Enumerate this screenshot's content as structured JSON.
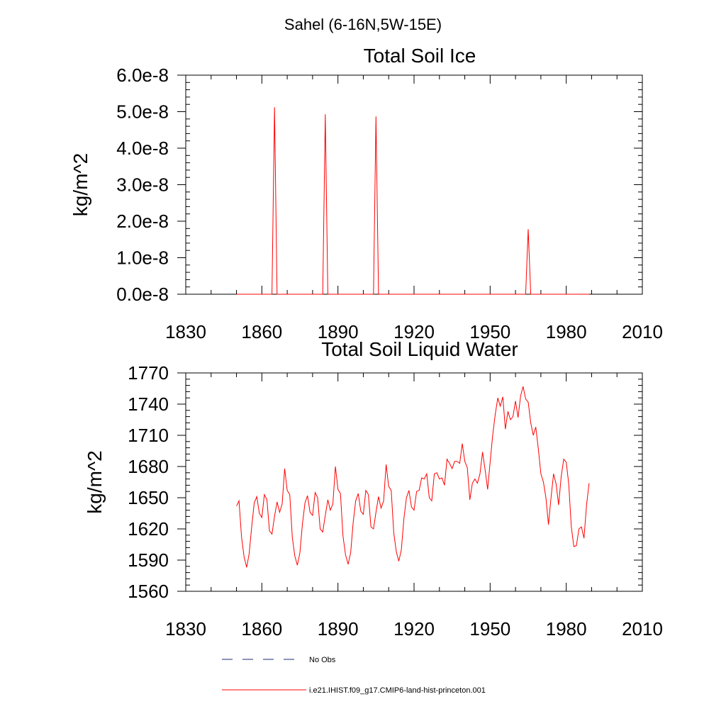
{
  "figure": {
    "supertitle": "Sahel (6-16N,5W-15E)"
  },
  "chart_data": [
    {
      "type": "line",
      "title": "Total Soil Ice",
      "xlabel": "",
      "ylabel": "kg/m^2",
      "xlim": [
        1830,
        2010
      ],
      "ylim": [
        0,
        6e-08
      ],
      "xticks": [
        1830,
        1860,
        1890,
        1920,
        1950,
        1980,
        2010
      ],
      "xtick_labels": [
        "1830",
        "1860",
        "1890",
        "1920",
        "1950",
        "1980",
        "2010"
      ],
      "yticks": [
        0,
        1e-08,
        2e-08,
        3e-08,
        4e-08,
        5e-08,
        6e-08
      ],
      "ytick_labels": [
        "0.0e-8",
        "1.0e-8",
        "2.0e-8",
        "3.0e-8",
        "4.0e-8",
        "5.0e-8",
        "6.0e-8"
      ],
      "grid": false,
      "series": [
        {
          "name": "i.e21.IHIST.f09_g17.CMIP6-land-hist-princeton.001",
          "color": "#ff0000",
          "x": [
            1850,
            1864,
            1865,
            1866,
            1884,
            1885,
            1886,
            1904,
            1905,
            1906,
            1964,
            1965,
            1966,
            1989
          ],
          "y": [
            0,
            0,
            5.12e-08,
            0,
            0,
            4.93e-08,
            0,
            0,
            4.87e-08,
            0,
            0,
            1.78e-08,
            0,
            0
          ]
        }
      ]
    },
    {
      "type": "line",
      "title": "Total Soil Liquid Water",
      "xlabel": "",
      "ylabel": "kg/m^2",
      "xlim": [
        1830,
        2010
      ],
      "ylim": [
        1560,
        1770
      ],
      "xticks": [
        1830,
        1860,
        1890,
        1920,
        1950,
        1980,
        2010
      ],
      "xtick_labels": [
        "1830",
        "1860",
        "1890",
        "1920",
        "1950",
        "1980",
        "2010"
      ],
      "yticks": [
        1560,
        1590,
        1620,
        1650,
        1680,
        1710,
        1740,
        1770
      ],
      "ytick_labels": [
        "1560",
        "1590",
        "1620",
        "1650",
        "1680",
        "1710",
        "1740",
        "1770"
      ],
      "grid": false,
      "series": [
        {
          "name": "i.e21.IHIST.f09_g17.CMIP6-land-hist-princeton.001",
          "color": "#ff0000",
          "x": [
            1850,
            1851,
            1852,
            1853,
            1854,
            1855,
            1856,
            1857,
            1858,
            1859,
            1860,
            1861,
            1862,
            1863,
            1864,
            1865,
            1866,
            1867,
            1868,
            1869,
            1870,
            1871,
            1872,
            1873,
            1874,
            1875,
            1876,
            1877,
            1878,
            1879,
            1880,
            1881,
            1882,
            1883,
            1884,
            1885,
            1886,
            1887,
            1888,
            1889,
            1890,
            1891,
            1892,
            1893,
            1894,
            1895,
            1896,
            1897,
            1898,
            1899,
            1900,
            1901,
            1902,
            1903,
            1904,
            1905,
            1906,
            1907,
            1908,
            1909,
            1910,
            1911,
            1912,
            1913,
            1914,
            1915,
            1916,
            1917,
            1918,
            1919,
            1920,
            1921,
            1922,
            1923,
            1924,
            1925,
            1926,
            1927,
            1928,
            1929,
            1930,
            1931,
            1932,
            1933,
            1934,
            1935,
            1936,
            1937,
            1938,
            1939,
            1940,
            1941,
            1942,
            1943,
            1944,
            1945,
            1946,
            1947,
            1948,
            1949,
            1950,
            1951,
            1952,
            1953,
            1954,
            1955,
            1956,
            1957,
            1958,
            1959,
            1960,
            1961,
            1962,
            1963,
            1964,
            1965,
            1966,
            1967,
            1968,
            1969,
            1970,
            1971,
            1972,
            1973,
            1974,
            1975,
            1976,
            1977,
            1978,
            1979,
            1980,
            1981,
            1982,
            1983,
            1984,
            1985,
            1986,
            1987,
            1988,
            1989
          ],
          "y": [
            1642,
            1647,
            1612,
            1593,
            1583,
            1596,
            1622,
            1645,
            1651,
            1635,
            1631,
            1653,
            1648,
            1618,
            1615,
            1632,
            1646,
            1636,
            1644,
            1678,
            1657,
            1653,
            1612,
            1594,
            1585,
            1597,
            1625,
            1645,
            1652,
            1636,
            1633,
            1655,
            1650,
            1620,
            1617,
            1633,
            1648,
            1638,
            1644,
            1680,
            1658,
            1654,
            1613,
            1595,
            1586,
            1597,
            1626,
            1647,
            1654,
            1637,
            1634,
            1657,
            1653,
            1622,
            1620,
            1636,
            1651,
            1640,
            1647,
            1682,
            1661,
            1657,
            1616,
            1598,
            1589,
            1600,
            1630,
            1650,
            1657,
            1641,
            1638,
            1656,
            1657,
            1669,
            1668,
            1673,
            1650,
            1647,
            1673,
            1674,
            1668,
            1669,
            1662,
            1687,
            1683,
            1678,
            1685,
            1685,
            1683,
            1702,
            1685,
            1679,
            1648,
            1664,
            1668,
            1664,
            1673,
            1694,
            1677,
            1658,
            1684,
            1710,
            1730,
            1746,
            1738,
            1747,
            1716,
            1733,
            1725,
            1728,
            1743,
            1727,
            1748,
            1757,
            1745,
            1742,
            1722,
            1710,
            1718,
            1697,
            1673,
            1665,
            1650,
            1624,
            1650,
            1673,
            1663,
            1643,
            1670,
            1687,
            1684,
            1663,
            1622,
            1603,
            1604,
            1620,
            1622,
            1611,
            1643,
            1664
          ]
        }
      ]
    }
  ],
  "legend": [
    {
      "label": "No Obs",
      "color": "#1c2a70",
      "style": "dashed"
    },
    {
      "label": "i.e21.IHIST.f09_g17.CMIP6-land-hist-princeton.001",
      "color": "#ff0000",
      "style": "solid"
    }
  ]
}
